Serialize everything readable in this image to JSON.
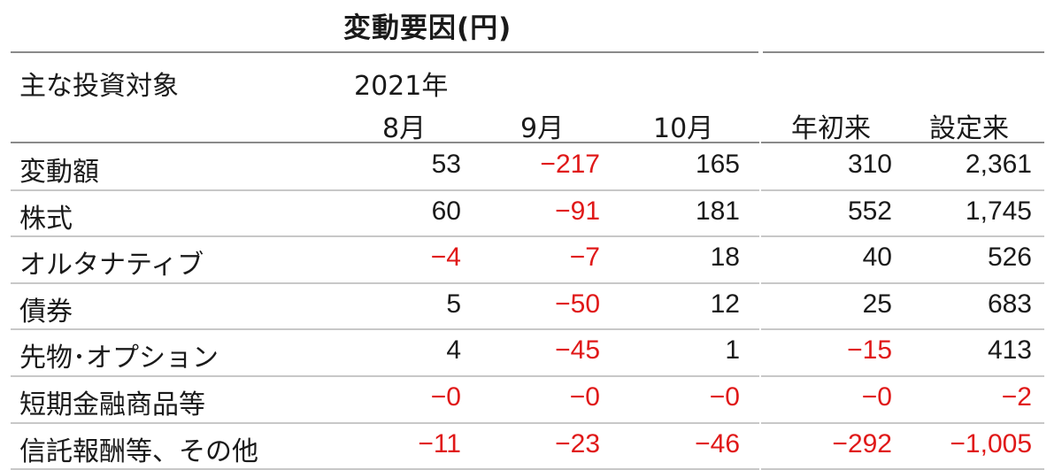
{
  "title": "変動要因(円)",
  "header": {
    "corner_label": "主な投資対象",
    "year_label": "2021年",
    "columns": [
      "8月",
      "9月",
      "10月",
      "年初来",
      "設定来"
    ]
  },
  "rows": [
    {
      "label": "変動額",
      "values": [
        "53",
        "−217",
        "165",
        "310",
        "2,361"
      ]
    },
    {
      "label": "株式",
      "values": [
        "60",
        "−91",
        "181",
        "552",
        "1,745"
      ]
    },
    {
      "label": "オルタナティブ",
      "values": [
        "−4",
        "−7",
        "18",
        "40",
        "526"
      ]
    },
    {
      "label": "債券",
      "values": [
        "5",
        "−50",
        "12",
        "25",
        "683"
      ]
    },
    {
      "label": "先物･オプション",
      "values": [
        "4",
        "−45",
        "1",
        "−15",
        "413"
      ]
    },
    {
      "label": "短期金融商品等",
      "values": [
        "−0",
        "−0",
        "−0",
        "−0",
        "−2"
      ]
    },
    {
      "label": "信託報酬等、その他",
      "values": [
        "−11",
        "−23",
        "−46",
        "−292",
        "−1,005"
      ]
    }
  ],
  "colors": {
    "negative": "#e01818",
    "text": "#1a1a1a",
    "rule": "#c8c8c8"
  }
}
